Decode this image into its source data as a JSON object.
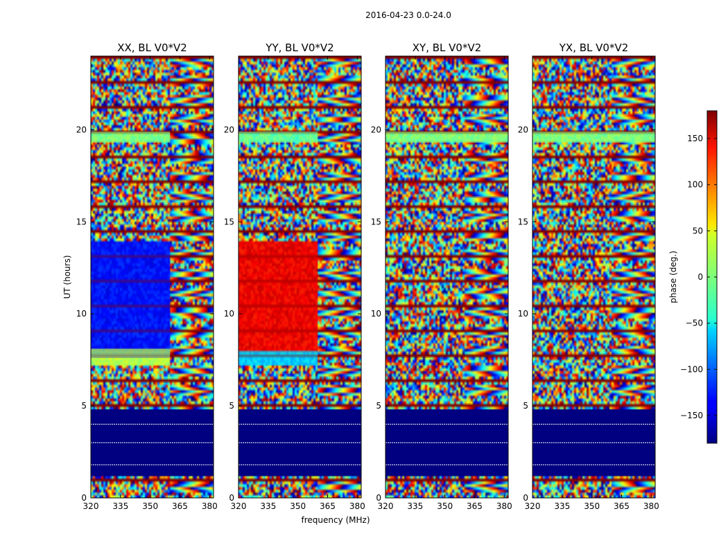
{
  "figure": {
    "suptitle": "2016-04-23 0.0-24.0"
  },
  "chart_data": {
    "type": "heatmap",
    "xlabel": "frequency (MHz)",
    "ylabel": "UT (hours)",
    "xlim": [
      320,
      382
    ],
    "ylim": [
      0,
      24
    ],
    "xticks": [
      320,
      335,
      350,
      365,
      380
    ],
    "yticks": [
      0,
      5,
      10,
      15,
      20
    ],
    "colormap": "jet",
    "colorbar": {
      "label": "phase (deg.)",
      "range": [
        -180,
        180
      ],
      "ticks": [
        -150,
        -100,
        -50,
        0,
        50,
        100,
        150
      ],
      "tick_labels": [
        "−150",
        "−100",
        "−50",
        "0",
        "50",
        "100",
        "150"
      ]
    },
    "panels": [
      {
        "title": "XX, BL V0*V2",
        "regions": [
          {
            "x": [
              320,
              360
            ],
            "y": [
              7.6,
              13.9
            ],
            "phase": -130
          },
          {
            "x": [
              320,
              360
            ],
            "y": [
              7.2,
              8.1
            ],
            "phase": 20
          },
          {
            "x": [
              320,
              360
            ],
            "y": [
              19.3,
              19.9
            ],
            "phase": 0
          },
          {
            "x": [
              320,
              382
            ],
            "y": [
              1.2,
              4.8
            ],
            "phase": -180
          }
        ]
      },
      {
        "title": "YY, BL V0*V2",
        "regions": [
          {
            "x": [
              320,
              360
            ],
            "y": [
              7.9,
              13.9
            ],
            "phase": 140
          },
          {
            "x": [
              320,
              360
            ],
            "y": [
              7.2,
              8.0
            ],
            "phase": -60
          },
          {
            "x": [
              320,
              360
            ],
            "y": [
              19.3,
              19.9
            ],
            "phase": -10
          },
          {
            "x": [
              320,
              382
            ],
            "y": [
              1.2,
              4.8
            ],
            "phase": -180
          }
        ]
      },
      {
        "title": "XY, BL V0*V2",
        "regions": [
          {
            "x": [
              320,
              382
            ],
            "y": [
              19.3,
              19.9
            ],
            "phase": 0
          },
          {
            "x": [
              320,
              382
            ],
            "y": [
              1.2,
              4.8
            ],
            "phase": -180
          }
        ]
      },
      {
        "title": "YX, BL V0*V2",
        "regions": [
          {
            "x": [
              320,
              382
            ],
            "y": [
              19.3,
              19.9
            ],
            "phase": 0
          },
          {
            "x": [
              320,
              382
            ],
            "y": [
              1.2,
              4.8
            ],
            "phase": -180
          }
        ]
      }
    ]
  }
}
